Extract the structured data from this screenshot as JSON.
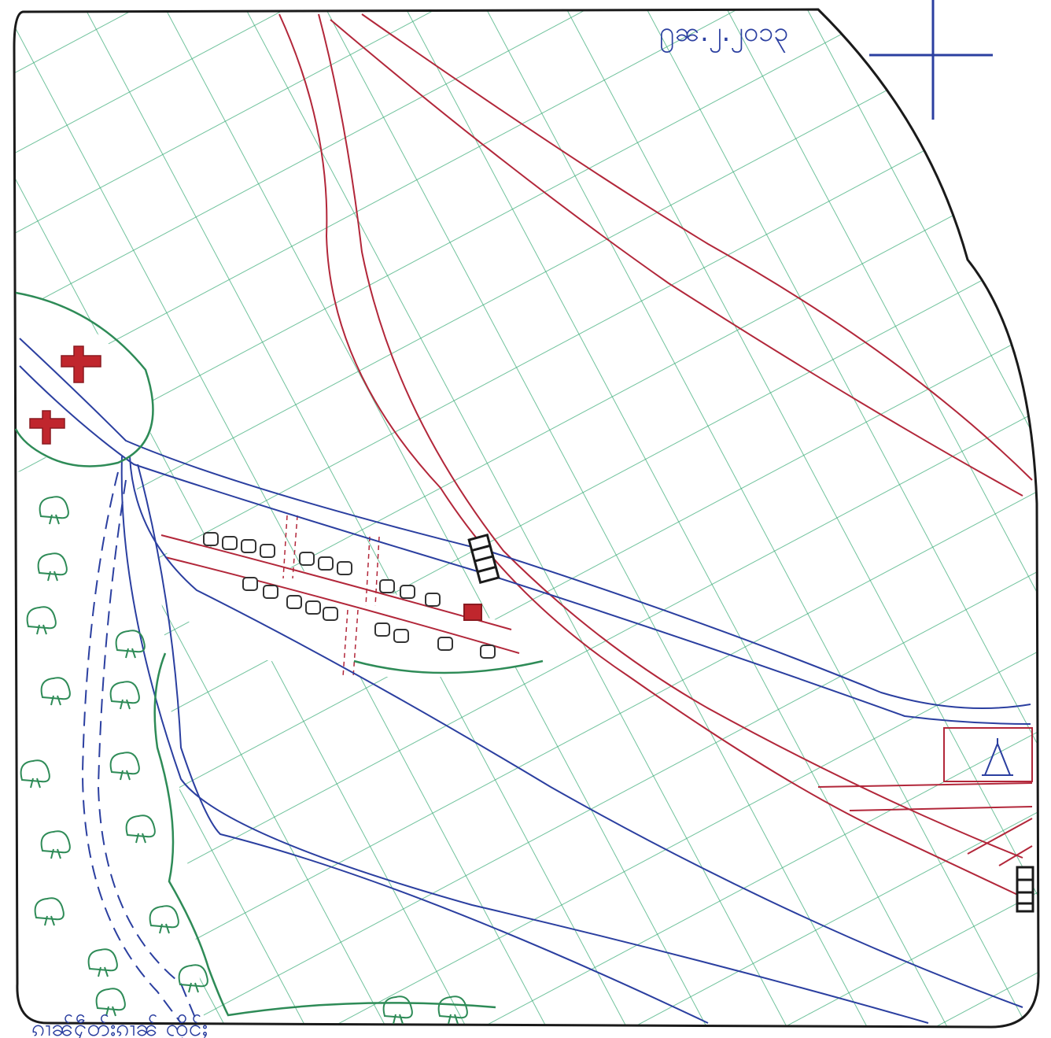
{
  "date_note": "႐ၼ.၂.၂၀၁၃",
  "bottom_caption": "ၵၢၼ်ႁဵတ်းၵၢၼ် ၸိုင်ႈ",
  "colors": {
    "ink": "#1a1a1a",
    "field_hatch": "#3fae7a",
    "forest_outline": "#2e8b57",
    "river": "#2b3fa0",
    "road": "#b2273a",
    "cross": "#c0262d",
    "house": "#333333",
    "special_house": "#c0262d"
  },
  "icons": {
    "compass": "compass-cross-icon",
    "church": "cross-icon",
    "tree": "tree-icon",
    "house": "house-icon",
    "bridge": "bridge-icon",
    "pagoda": "pagoda-icon"
  }
}
